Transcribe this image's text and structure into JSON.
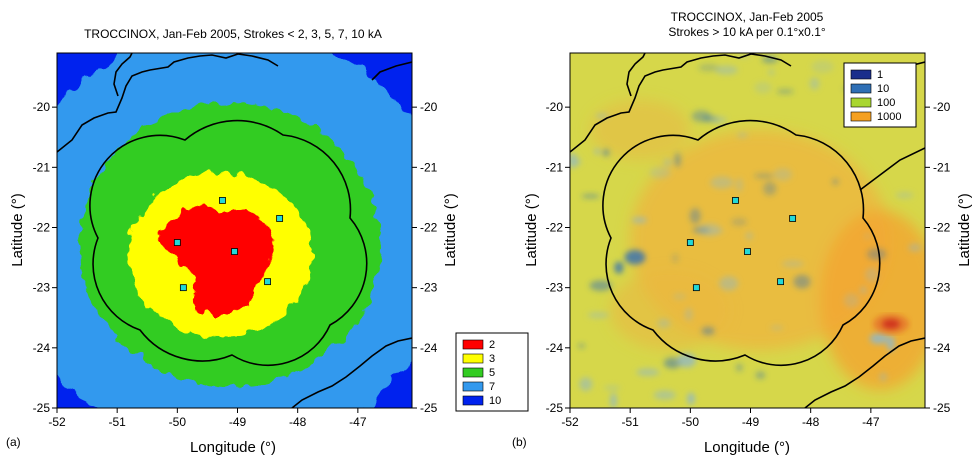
{
  "chart_data": [
    {
      "type": "heatmap",
      "panel_label": "(a)",
      "title": "TROCCINOX, Jan-Feb 2005, Strokes < 2, 3, 5, 7, 10 kA",
      "xlabel": "Longitude (°)",
      "ylabel": "Latitude (°)",
      "xlim": [
        -52,
        -46.1
      ],
      "ylim": [
        -25,
        -19.1
      ],
      "xticks": [
        -52,
        -51,
        -50,
        -49,
        -48,
        -47
      ],
      "yticks": [
        -20,
        -21,
        -22,
        -23,
        -24,
        -25
      ],
      "grid": false,
      "legend_placement": "bottom-right outside",
      "legend": [
        {
          "label": "2",
          "color": "#ff0000"
        },
        {
          "label": "3",
          "color": "#ffff00"
        },
        {
          "label": "5",
          "color": "#33cc22"
        },
        {
          "label": "7",
          "color": "#3399ee"
        },
        {
          "label": "10",
          "color": "#0022ee"
        }
      ],
      "contour_regions_center": [
        -49.1,
        -22.4
      ],
      "contour_regions": [
        {
          "label": "2",
          "approx_radius_deg": [
            0.7,
            0.85
          ]
        },
        {
          "label": "3",
          "approx_radius_deg": [
            1.35,
            1.4
          ]
        },
        {
          "label": "5",
          "approx_radius_deg": [
            2.5,
            2.35
          ]
        },
        {
          "label": "7",
          "approx_radius_deg": [
            3.7,
            3.6
          ]
        },
        {
          "label": "10",
          "approx_radius_deg": "full domain"
        }
      ],
      "stations": [
        {
          "lon": -49.25,
          "lat": -21.55
        },
        {
          "lon": -48.3,
          "lat": -21.85
        },
        {
          "lon": -50.0,
          "lat": -22.25
        },
        {
          "lon": -49.05,
          "lat": -22.4
        },
        {
          "lon": -48.5,
          "lat": -22.9
        },
        {
          "lon": -49.9,
          "lat": -23.0
        }
      ]
    },
    {
      "type": "heatmap",
      "panel_label": "(b)",
      "title": "TROCCINOX, Jan-Feb 2005",
      "subtitle": "Strokes > 10 kA per 0.1°x0.1°",
      "xlabel": "Longitude (°)",
      "ylabel": "Latitude (°)",
      "xlim": [
        -52,
        -46.1
      ],
      "ylim": [
        -25,
        -19.1
      ],
      "xticks": [
        -52,
        -51,
        -50,
        -49,
        -48,
        -47
      ],
      "yticks": [
        -20,
        -21,
        -22,
        -23,
        -24,
        -25
      ],
      "grid": false,
      "legend_placement": "top-right",
      "legend": [
        {
          "label": "1",
          "color": "#1a2e8c"
        },
        {
          "label": "10",
          "color": "#2f6fb5"
        },
        {
          "label": "100",
          "color": "#a8d630"
        },
        {
          "label": "1000",
          "color": "#f5a020"
        }
      ],
      "dominant_level": "100",
      "hotspots": [
        {
          "lon": -46.75,
          "lat": -23.65,
          "level": "1000"
        }
      ],
      "stations": [
        {
          "lon": -49.25,
          "lat": -21.55
        },
        {
          "lon": -48.3,
          "lat": -21.85
        },
        {
          "lon": -50.0,
          "lat": -22.25
        },
        {
          "lon": -49.05,
          "lat": -22.4
        },
        {
          "lon": -48.5,
          "lat": -22.9
        },
        {
          "lon": -49.9,
          "lat": -23.0
        }
      ]
    }
  ]
}
